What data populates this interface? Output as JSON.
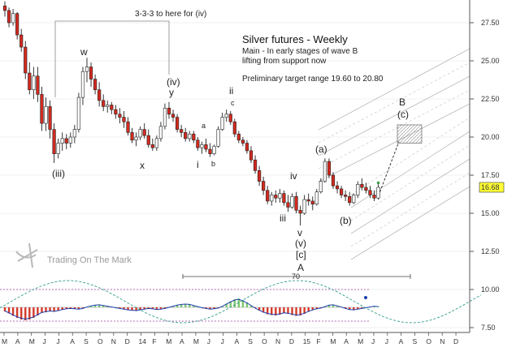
{
  "chart_data": {
    "type": "candlestick",
    "title": "Silver futures - Weekly",
    "subtitle_lines": [
      "Main - In early stages of wave B",
      "lifting from support now"
    ],
    "target_text": "Preliminary target range 19.60 to 20.80",
    "note_text": "3-3-3 to here for (iv)",
    "watermark": "Trading On The Mark",
    "last_price": "16.68",
    "cycle_label": "70",
    "y_ticks": [
      "27.50",
      "25.00",
      "22.50",
      "20.00",
      "17.50",
      "15.00",
      "12.50",
      "10.00",
      "7.50"
    ],
    "ylim": [
      7.5,
      28.5
    ],
    "x_ticks": [
      "M",
      "A",
      "M",
      "J",
      "J",
      "A",
      "S",
      "O",
      "N",
      "D",
      "14",
      "F",
      "M",
      "A",
      "M",
      "J",
      "J",
      "A",
      "S",
      "O",
      "N",
      "D",
      "15",
      "F",
      "M",
      "A",
      "M",
      "J",
      "J",
      "A",
      "S",
      "O",
      "N",
      "D"
    ],
    "wave_labels": [
      {
        "text": "w",
        "size": "big"
      },
      {
        "text": "(iv)",
        "size": "big"
      },
      {
        "text": "y",
        "size": "big"
      },
      {
        "text": "ii",
        "size": "big"
      },
      {
        "text": "c",
        "size": "small"
      },
      {
        "text": "a",
        "size": "small"
      },
      {
        "text": "b",
        "size": "small"
      },
      {
        "text": "i",
        "size": "big"
      },
      {
        "text": "x",
        "size": "big"
      },
      {
        "text": "(iii)",
        "size": "big"
      },
      {
        "text": "iii",
        "size": "big"
      },
      {
        "text": "iv",
        "size": "big"
      },
      {
        "text": "v",
        "size": "big"
      },
      {
        "text": "(v)",
        "size": "big"
      },
      {
        "text": "[c]",
        "size": "big"
      },
      {
        "text": "A",
        "size": "big"
      },
      {
        "text": "(a)",
        "size": "big"
      },
      {
        "text": "(b)",
        "size": "big"
      },
      {
        "text": "B",
        "size": "big"
      },
      {
        "text": "(c)",
        "size": "big"
      }
    ],
    "target_box": [
      19.6,
      20.8
    ],
    "candles": [
      [
        28.6,
        28.9,
        27.9,
        28.3
      ],
      [
        28.3,
        28.5,
        27.2,
        27.5
      ],
      [
        27.5,
        28.4,
        27.3,
        28.1
      ],
      [
        28.1,
        28.2,
        26.4,
        26.7
      ],
      [
        26.7,
        27.1,
        25.6,
        25.9
      ],
      [
        25.9,
        26.3,
        23.8,
        24.2
      ],
      [
        24.2,
        24.9,
        22.8,
        23.1
      ],
      [
        23.1,
        24.6,
        22.5,
        24.0
      ],
      [
        24.0,
        24.6,
        22.3,
        22.8
      ],
      [
        22.8,
        23.3,
        20.4,
        20.9
      ],
      [
        20.9,
        22.6,
        20.4,
        22.0
      ],
      [
        22.0,
        22.4,
        19.9,
        20.5
      ],
      [
        20.5,
        20.9,
        18.3,
        18.9
      ],
      [
        18.9,
        19.9,
        18.6,
        19.6
      ],
      [
        19.6,
        20.3,
        19.1,
        19.9
      ],
      [
        19.9,
        20.2,
        19.2,
        19.6
      ],
      [
        19.6,
        20.3,
        19.3,
        20.0
      ],
      [
        20.0,
        20.8,
        19.6,
        20.5
      ],
      [
        20.5,
        22.9,
        20.3,
        22.6
      ],
      [
        22.6,
        24.6,
        22.1,
        24.3
      ],
      [
        24.3,
        25.2,
        23.6,
        24.6
      ],
      [
        24.6,
        24.9,
        23.3,
        23.8
      ],
      [
        23.8,
        24.1,
        22.8,
        23.1
      ],
      [
        23.1,
        23.6,
        22.0,
        22.4
      ],
      [
        22.4,
        22.8,
        21.7,
        22.0
      ],
      [
        22.0,
        22.4,
        21.6,
        22.1
      ],
      [
        22.1,
        22.3,
        21.5,
        21.8
      ],
      [
        21.8,
        22.1,
        21.2,
        21.5
      ],
      [
        21.5,
        21.9,
        20.9,
        21.3
      ],
      [
        21.3,
        21.7,
        20.6,
        21.0
      ],
      [
        21.0,
        21.3,
        20.1,
        20.3
      ],
      [
        20.3,
        20.6,
        19.6,
        19.8
      ],
      [
        19.8,
        20.3,
        19.4,
        20.0
      ],
      [
        20.0,
        20.7,
        19.8,
        20.5
      ],
      [
        20.5,
        20.9,
        19.9,
        20.1
      ],
      [
        20.1,
        20.5,
        19.3,
        19.5
      ],
      [
        19.5,
        19.9,
        19.1,
        19.3
      ],
      [
        19.3,
        20.1,
        19.1,
        19.9
      ],
      [
        19.9,
        21.0,
        19.7,
        20.7
      ],
      [
        20.7,
        22.2,
        20.5,
        21.9
      ],
      [
        21.9,
        22.3,
        21.2,
        21.5
      ],
      [
        21.5,
        21.8,
        21.0,
        21.3
      ],
      [
        21.3,
        21.5,
        20.3,
        20.5
      ],
      [
        20.5,
        20.8,
        20.0,
        20.3
      ],
      [
        20.3,
        20.6,
        19.7,
        19.9
      ],
      [
        19.9,
        20.4,
        19.7,
        20.2
      ],
      [
        20.2,
        20.4,
        19.6,
        19.8
      ],
      [
        19.8,
        20.0,
        19.1,
        19.3
      ],
      [
        19.3,
        19.7,
        18.9,
        19.5
      ],
      [
        19.5,
        19.9,
        19.0,
        19.2
      ],
      [
        19.2,
        19.6,
        18.7,
        18.9
      ],
      [
        18.9,
        19.5,
        18.8,
        19.4
      ],
      [
        19.4,
        20.7,
        19.3,
        20.5
      ],
      [
        20.5,
        21.6,
        20.4,
        21.3
      ],
      [
        21.3,
        21.8,
        21.0,
        21.5
      ],
      [
        21.5,
        21.7,
        20.8,
        21.0
      ],
      [
        21.0,
        21.2,
        20.0,
        20.2
      ],
      [
        20.2,
        20.4,
        19.6,
        19.8
      ],
      [
        19.8,
        20.0,
        19.4,
        19.6
      ],
      [
        19.6,
        19.8,
        18.9,
        19.1
      ],
      [
        19.1,
        19.4,
        18.3,
        18.5
      ],
      [
        18.5,
        18.8,
        17.6,
        17.8
      ],
      [
        17.8,
        18.1,
        16.8,
        17.1
      ],
      [
        17.1,
        17.4,
        16.2,
        16.5
      ],
      [
        16.5,
        16.8,
        15.6,
        15.8
      ],
      [
        15.8,
        16.4,
        15.5,
        16.2
      ],
      [
        16.2,
        16.5,
        15.7,
        16.0
      ],
      [
        16.0,
        16.6,
        15.7,
        16.3
      ],
      [
        16.3,
        16.5,
        15.5,
        15.7
      ],
      [
        15.7,
        16.2,
        15.1,
        15.4
      ],
      [
        15.4,
        16.3,
        15.3,
        16.1
      ],
      [
        16.1,
        16.4,
        15.0,
        15.2
      ],
      [
        15.2,
        15.5,
        14.2,
        15.0
      ],
      [
        15.0,
        16.2,
        14.9,
        15.9
      ],
      [
        15.9,
        16.3,
        15.5,
        15.8
      ],
      [
        15.8,
        16.1,
        15.2,
        15.6
      ],
      [
        15.6,
        16.6,
        15.5,
        16.4
      ],
      [
        16.4,
        17.3,
        16.3,
        17.1
      ],
      [
        17.1,
        18.6,
        17.0,
        18.4
      ],
      [
        18.4,
        18.6,
        17.3,
        17.5
      ],
      [
        17.5,
        17.7,
        16.6,
        16.8
      ],
      [
        16.8,
        17.1,
        16.3,
        16.6
      ],
      [
        16.6,
        16.8,
        16.0,
        16.2
      ],
      [
        16.2,
        16.5,
        15.8,
        16.1
      ],
      [
        16.1,
        16.4,
        15.5,
        15.7
      ],
      [
        15.7,
        16.3,
        15.6,
        16.2
      ],
      [
        16.2,
        17.1,
        16.0,
        16.9
      ],
      [
        16.9,
        17.3,
        16.5,
        16.7
      ],
      [
        16.7,
        17.0,
        16.3,
        16.5
      ],
      [
        16.5,
        16.8,
        16.0,
        16.2
      ],
      [
        16.2,
        16.5,
        15.8,
        16.0
      ],
      [
        16.0,
        16.9,
        15.9,
        16.7
      ]
    ],
    "osc_hist": [
      -1.0,
      -1.5,
      -2.1,
      -2.6,
      -3.0,
      -3.2,
      -3.0,
      -2.6,
      -2.0,
      -1.4,
      -1.2,
      -1.0,
      -1.1,
      -0.9,
      -0.6,
      -0.4,
      -0.3,
      -0.4,
      -0.5,
      -0.3,
      0.1,
      0.4,
      0.6,
      0.7,
      0.5,
      0.3,
      0.1,
      -0.1,
      -0.3,
      -0.5,
      -0.7,
      -0.8,
      -0.9,
      -0.7,
      -0.5,
      -0.3,
      -0.4,
      -0.6,
      -0.5,
      -0.3,
      0.0,
      0.3,
      0.6,
      0.8,
      0.9,
      0.8,
      0.5,
      0.2,
      -0.1,
      -0.3,
      -0.5,
      -0.4,
      -0.2,
      0.3,
      0.9,
      1.5,
      2.0,
      2.2,
      1.8,
      1.2,
      0.5,
      -0.2,
      -0.8,
      -1.3,
      -1.7,
      -1.9,
      -2.0,
      -1.8,
      -1.5,
      -1.6,
      -1.9,
      -2.1,
      -2.0,
      -1.6,
      -1.1,
      -0.7,
      -0.4,
      -0.2,
      0.2,
      0.6,
      0.7,
      0.4,
      0.1,
      -0.3,
      -0.6,
      -0.7,
      -0.5,
      -0.3,
      -0.1,
      0.1,
      0.3,
      0.2
    ]
  }
}
